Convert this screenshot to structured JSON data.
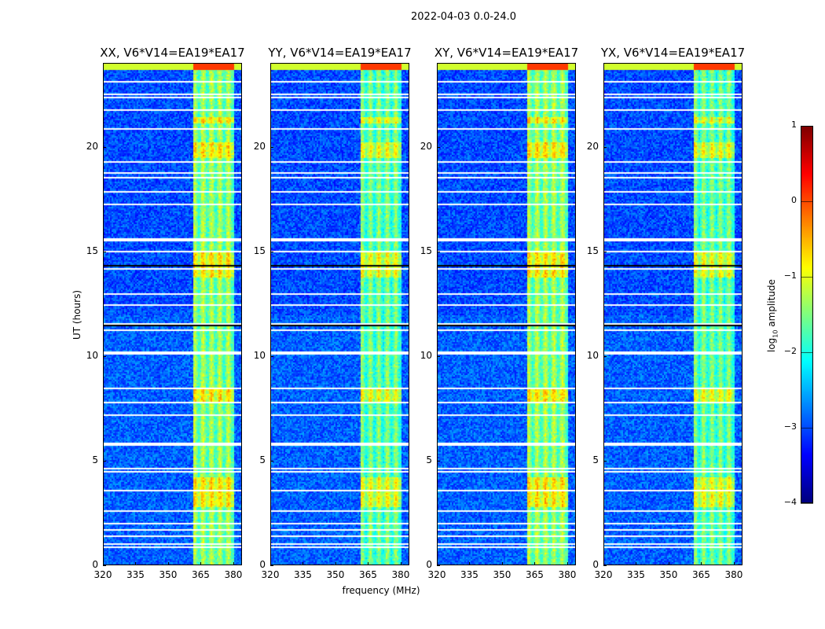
{
  "suptitle": "2022-04-03 0.0-24.0",
  "chart_data": {
    "type": "heatmap",
    "title": "2022-04-03 0.0-24.0",
    "xlabel": "frequency (MHz)",
    "ylabel": "UT (hours)",
    "xlim": [
      320,
      384
    ],
    "ylim": [
      0,
      24
    ],
    "x_ticks": [
      "320",
      "335",
      "350",
      "365",
      "380"
    ],
    "x_tick_values": [
      320,
      335,
      350,
      365,
      380
    ],
    "y_ticks": [
      "0",
      "5",
      "10",
      "15",
      "20"
    ],
    "y_tick_values": [
      0,
      5,
      10,
      15,
      20
    ],
    "panels": [
      {
        "title": "XX, V6*V14=EA19*EA17"
      },
      {
        "title": "YY, V6*V14=EA19*EA17"
      },
      {
        "title": "XY, V6*V14=EA19*EA17"
      },
      {
        "title": "YX, V6*V14=EA19*EA17"
      }
    ],
    "rfi_band_mhz": [
      361,
      380
    ],
    "background_log_amplitude": -3,
    "rfi_log_amplitude": -1.5,
    "flagged_hours": [
      0.9,
      1.0,
      1.4,
      1.7,
      2.0,
      2.6,
      3.6,
      4.5,
      4.6,
      5.8,
      7.2,
      7.8,
      8.5,
      10.1,
      10.2,
      11.3,
      11.6,
      12.5,
      13.0,
      14.2,
      15.0,
      15.6,
      17.3,
      17.9,
      18.6,
      18.8,
      19.3,
      20.9,
      21.8,
      22.4,
      22.6,
      23.2
    ],
    "colorbar": {
      "label": "log10 amplitude",
      "label_main": "log",
      "label_sub": "10",
      "label_rest": " amplitude",
      "range": [
        -4,
        1
      ],
      "ticks": [
        "1",
        "0",
        "−1",
        "−2",
        "−3",
        "−4"
      ],
      "tick_values": [
        1,
        0,
        -1,
        -2,
        -3,
        -4
      ],
      "colormap": "jet"
    }
  }
}
